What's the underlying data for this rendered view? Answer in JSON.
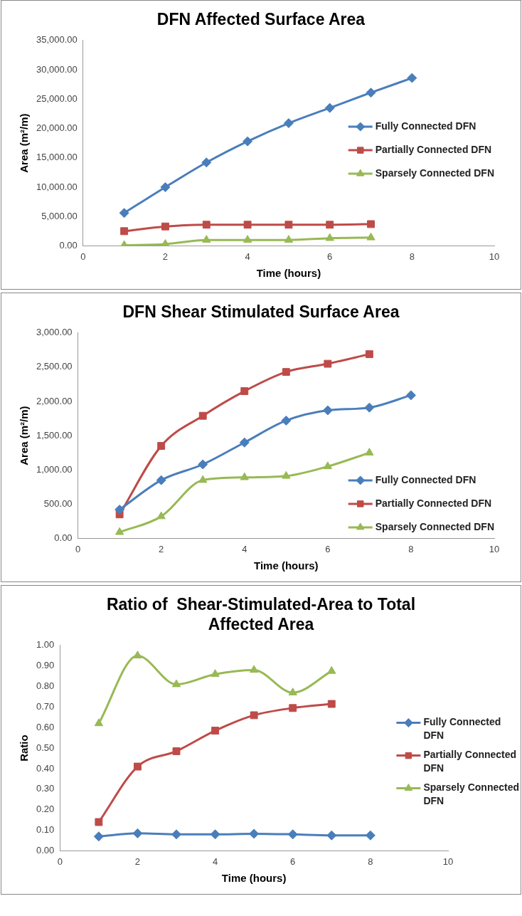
{
  "chart_data": [
    {
      "type": "line",
      "title": "DFN Affected Surface Area",
      "xlabel": "Time (hours)",
      "ylabel": "Area (m²/m)",
      "x": [
        1,
        2,
        3,
        4,
        5,
        6,
        7,
        8
      ],
      "series": [
        {
          "name": "Fully Connected DFN",
          "color": "#4a7ebb",
          "marker": "diamond",
          "values": [
            5600,
            10000,
            14200,
            17800,
            20900,
            23500,
            26100,
            28600
          ]
        },
        {
          "name": "Partially Connected DFN",
          "color": "#be4b48",
          "marker": "square",
          "x": [
            1,
            2,
            3,
            4,
            5,
            6,
            7
          ],
          "values": [
            2500,
            3300,
            3600,
            3600,
            3600,
            3600,
            3700
          ]
        },
        {
          "name": "Sparsely Connected DFN",
          "color": "#98b954",
          "marker": "triangle",
          "x": [
            1,
            2,
            3,
            4,
            5,
            6,
            7
          ],
          "values": [
            100,
            300,
            1000,
            1000,
            1000,
            1300,
            1400
          ]
        }
      ],
      "xlim": [
        0,
        10
      ],
      "xticks": [
        0,
        2,
        4,
        6,
        8,
        10
      ],
      "ylim": [
        0,
        35000
      ],
      "yticks": [
        {
          "value": 0,
          "label": "0.00"
        },
        {
          "value": 5000,
          "label": "5,000.00"
        },
        {
          "value": 10000,
          "label": "10,000.00"
        },
        {
          "value": 15000,
          "label": "15,000.00"
        },
        {
          "value": 20000,
          "label": "20,000.00"
        },
        {
          "value": 25000,
          "label": "25,000.00"
        },
        {
          "value": 30000,
          "label": "30,000.00"
        },
        {
          "value": 35000,
          "label": "35,000.00"
        }
      ],
      "grid": false,
      "legend": "right"
    },
    {
      "type": "line",
      "title": "DFN Shear Stimulated Surface Area",
      "xlabel": "Time (hours)",
      "ylabel": "Area (m²/m)",
      "x": [
        1,
        2,
        3,
        4,
        5,
        6,
        7,
        8
      ],
      "series": [
        {
          "name": "Fully Connected DFN",
          "color": "#4a7ebb",
          "marker": "diamond",
          "values": [
            420,
            850,
            1080,
            1400,
            1720,
            1870,
            1910,
            2090
          ]
        },
        {
          "name": "Partially Connected DFN",
          "color": "#be4b48",
          "marker": "square",
          "x": [
            1,
            2,
            3,
            4,
            5,
            6,
            7
          ],
          "values": [
            350,
            1350,
            1790,
            2150,
            2430,
            2550,
            2690
          ]
        },
        {
          "name": "Sparsely Connected DFN",
          "color": "#98b954",
          "marker": "triangle",
          "x": [
            1,
            2,
            3,
            4,
            5,
            6,
            7
          ],
          "values": [
            90,
            320,
            850,
            890,
            910,
            1050,
            1250
          ]
        }
      ],
      "xlim": [
        0,
        10
      ],
      "xticks": [
        0,
        2,
        4,
        6,
        8,
        10
      ],
      "ylim": [
        0,
        3000
      ],
      "yticks": [
        {
          "value": 0,
          "label": "0.00"
        },
        {
          "value": 500,
          "label": "500.00"
        },
        {
          "value": 1000,
          "label": "1,000.00"
        },
        {
          "value": 1500,
          "label": "1,500.00"
        },
        {
          "value": 2000,
          "label": "2,000.00"
        },
        {
          "value": 2500,
          "label": "2,500.00"
        },
        {
          "value": 3000,
          "label": "3,000.00"
        }
      ],
      "grid": false,
      "legend": "bottom right"
    },
    {
      "type": "line",
      "title": "Ratio of  Shear-Stimulated-Area to Total Affected Area",
      "xlabel": "Time (hours)",
      "ylabel": "Ratio",
      "x": [
        1,
        2,
        3,
        4,
        5,
        6,
        7,
        8
      ],
      "series": [
        {
          "name": "Fully Connected DFN",
          "color": "#4a7ebb",
          "marker": "diamond",
          "values": [
            0.07,
            0.085,
            0.08,
            0.08,
            0.083,
            0.08,
            0.075,
            0.075
          ]
        },
        {
          "name": "Partially Connected DFN",
          "color": "#be4b48",
          "marker": "square",
          "x": [
            1,
            2,
            3,
            4,
            5,
            6,
            7
          ],
          "values": [
            0.14,
            0.41,
            0.485,
            0.585,
            0.66,
            0.695,
            0.715
          ]
        },
        {
          "name": "Sparsely Connected DFN",
          "color": "#98b954",
          "marker": "triangle",
          "x": [
            1,
            2,
            3,
            4,
            5,
            6,
            7
          ],
          "values": [
            0.62,
            0.95,
            0.81,
            0.86,
            0.88,
            0.77,
            0.875
          ]
        }
      ],
      "xlim": [
        0,
        10
      ],
      "xticks": [
        0,
        2,
        4,
        6,
        8,
        10
      ],
      "ylim": [
        0,
        1
      ],
      "yticks": [
        {
          "value": 0,
          "label": "0.00"
        },
        {
          "value": 0.1,
          "label": "0.10"
        },
        {
          "value": 0.2,
          "label": "0.20"
        },
        {
          "value": 0.3,
          "label": "0.30"
        },
        {
          "value": 0.4,
          "label": "0.40"
        },
        {
          "value": 0.5,
          "label": "0.50"
        },
        {
          "value": 0.6,
          "label": "0.60"
        },
        {
          "value": 0.7,
          "label": "0.70"
        },
        {
          "value": 0.8,
          "label": "0.80"
        },
        {
          "value": 0.9,
          "label": "0.90"
        },
        {
          "value": 1,
          "label": "1.00"
        }
      ],
      "grid": false,
      "legend": "right"
    }
  ]
}
